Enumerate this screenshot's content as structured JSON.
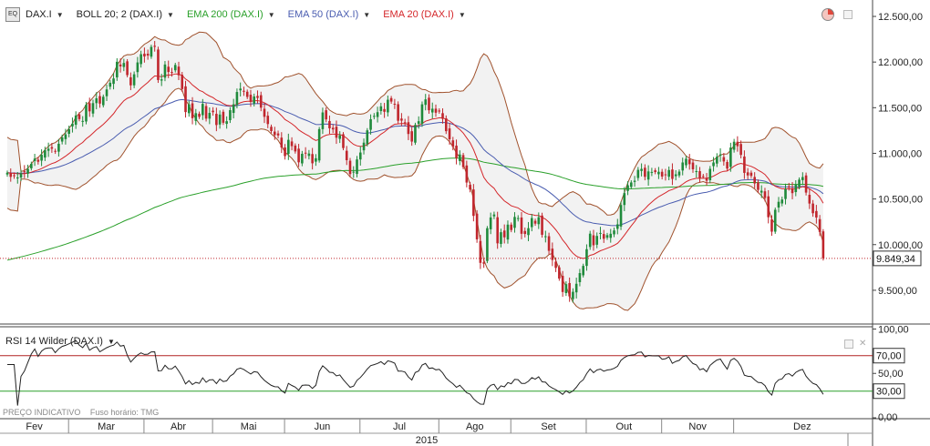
{
  "legend": {
    "symbol": "DAX.I",
    "boll": "BOLL 20; 2 (DAX.I)",
    "ema200": "EMA 200 (DAX.I)",
    "ema50": "EMA 50 (DAX.I)",
    "ema20": "EMA 20 (DAX.I)",
    "app_icon": "EQ"
  },
  "rsi_panel": {
    "label": "RSI 14 Wilder (DAX.I)"
  },
  "footer": {
    "note1": "PREÇO INDICATIVO",
    "note2": "Fuso horário: TMG"
  },
  "colors": {
    "candle_up": "#1f8a3b",
    "candle_down": "#c0262d",
    "boll": "#a0522d",
    "ema200": "#2aa02a",
    "ema50": "#4a5db0",
    "ema20": "#d4262a",
    "rsi_line": "#222222",
    "rsi_upper": "#b22222",
    "rsi_lower": "#2aa02a",
    "price_line": "#c0262d"
  },
  "chart_data": {
    "type": "candlestick",
    "instrument": "DAX.I",
    "ylim": [
      9150,
      12600
    ],
    "y_ticks": [
      "12.500,00",
      "12.000,00",
      "11.500,00",
      "11.000,00",
      "10.500,00",
      "10.000,00",
      "9.500,00"
    ],
    "y_tick_values": [
      12500,
      12000,
      11500,
      11000,
      10500,
      10000,
      9500
    ],
    "last_price": "9.849,34",
    "last_price_value": 9849.34,
    "months": [
      "Fev",
      "Mar",
      "Abr",
      "Mai",
      "Jun",
      "Jul",
      "Ago",
      "Set",
      "Out",
      "Nov",
      "Dez"
    ],
    "month_start_index": [
      0,
      20,
      42,
      62,
      83,
      105,
      128,
      149,
      171,
      193,
      214
    ],
    "year_label": "2015",
    "closes": [
      10788,
      10742,
      10752,
      10735,
      10780,
      10795,
      10830,
      10885,
      10942,
      10908,
      10984,
      11034,
      11050,
      11051,
      11018,
      11105,
      11174,
      11208,
      11265,
      11325,
      11415,
      11375,
      11355,
      11532,
      11460,
      11550,
      11603,
      11545,
      11620,
      11700,
      11773,
      11820,
      12003,
      11952,
      11990,
      11857,
      11745,
      11866,
      11996,
      12086,
      12061,
      12071,
      12166,
      12167,
      11803,
      11811,
      11973,
      11891,
      11886,
      11968,
      11855,
      11704,
      11452,
      11536,
      11385,
      11440,
      11400,
      11542,
      11380,
      11443,
      11451,
      11310,
      11425,
      11335,
      11352,
      11473,
      11537,
      11672,
      11709,
      11675,
      11618,
      11563,
      11623,
      11607,
      11500,
      11400,
      11321,
      11244,
      11200,
      11196,
      11064,
      10970,
      11148,
      11079,
      11021,
      10902,
      10995,
      11002,
      10998,
      10891,
      10946,
      11265,
      11448,
      11372,
      11274,
      11262,
      11171,
      11197,
      11058,
      10925,
      10773,
      10799,
      10933,
      11009,
      11117,
      11252,
      11374,
      11410,
      11451,
      11515,
      11455,
      11587,
      11567,
      11538,
      11357,
      11358,
      11335,
      11212,
      11129,
      11311,
      11352,
      11537,
      11591,
      11472,
      11489,
      11445,
      11458,
      11378,
      11243,
      11154,
      11072,
      10946,
      10987,
      10849,
      10680,
      10604,
      10315,
      10058,
      9800,
      9791,
      10180,
      10298,
      10330,
      10014,
      10136,
      10080,
      10219,
      10160,
      10303,
      10291,
      10119,
      10117,
      10180,
      10291,
      10230,
      10300,
      10108,
      10092,
      9932,
      9832,
      9745,
      9628,
      9481,
      9567,
      9433,
      9483,
      9571,
      9688,
      9767,
      9950,
      10120,
      9993,
      10095,
      10128,
      10064,
      10104,
      10119,
      10155,
      10222,
      10434,
      10564,
      10650,
      10681,
      10700,
      10819,
      10830,
      10743,
      10802,
      10796,
      10795,
      10798,
      10746,
      10762,
      10817,
      10720,
      10770,
      10800,
      10900,
      10940,
      10881,
      10825,
      10805,
      10727,
      10750,
      10700,
      10830,
      10900,
      10963,
      10988,
      10911,
      10833,
      11063,
      11127,
      11078,
      10983,
      10786,
      10758,
      10753,
      10670,
      10600,
      10590,
      10511,
      10300,
      10142,
      10382,
      10469,
      10494,
      10608,
      10630,
      10564,
      10660,
      10712,
      10740,
      10570,
      10450,
      10344,
      10297,
      10139,
      9850
    ]
  }
}
